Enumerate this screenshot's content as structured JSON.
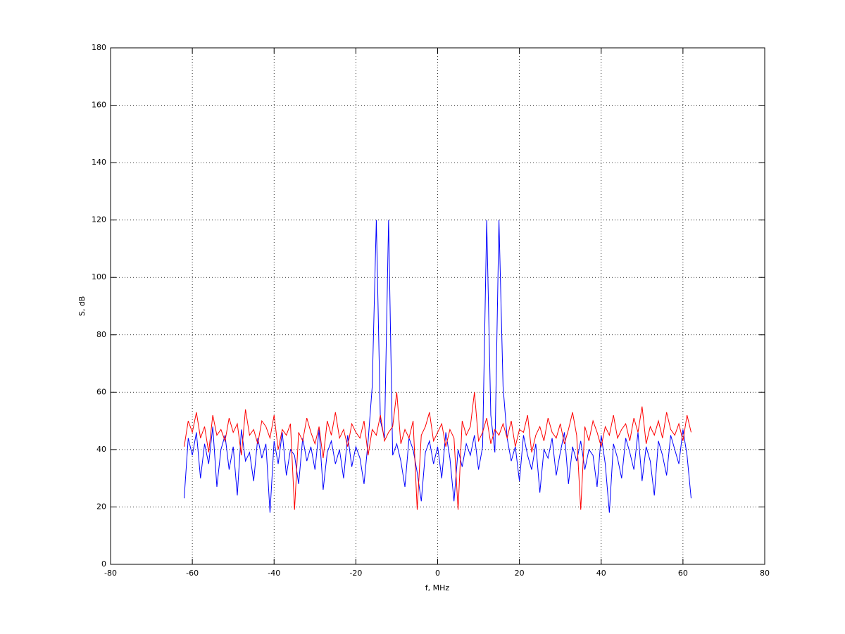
{
  "chart_data": {
    "type": "line",
    "xlabel": "f, MHz",
    "ylabel": "S, dB",
    "xlim": [
      -80,
      80
    ],
    "xticks": [
      -80,
      -60,
      -40,
      -20,
      0,
      20,
      40,
      60,
      80
    ],
    "ylim": [
      0,
      180
    ],
    "yticks": [
      0,
      20,
      40,
      60,
      80,
      100,
      120,
      140,
      160,
      180
    ],
    "grid": true,
    "x": [
      -62,
      -61,
      -60,
      -59,
      -58,
      -57,
      -56,
      -55,
      -54,
      -53,
      -52,
      -51,
      -50,
      -49,
      -48,
      -47,
      -46,
      -45,
      -44,
      -43,
      -42,
      -41,
      -40,
      -39,
      -38,
      -37,
      -36,
      -35,
      -34,
      -33,
      -32,
      -31,
      -30,
      -29,
      -28,
      -27,
      -26,
      -25,
      -24,
      -23,
      -22,
      -21,
      -20,
      -19,
      -18,
      -17,
      -16,
      -15,
      -14,
      -13,
      -12,
      -11,
      -10,
      -9,
      -8,
      -7,
      -6,
      -5,
      -4,
      -3,
      -2,
      -1,
      0,
      1,
      2,
      3,
      4,
      5,
      6,
      7,
      8,
      9,
      10,
      11,
      12,
      13,
      14,
      15,
      16,
      17,
      18,
      19,
      20,
      21,
      22,
      23,
      24,
      25,
      26,
      27,
      28,
      29,
      30,
      31,
      32,
      33,
      34,
      35,
      36,
      37,
      38,
      39,
      40,
      41,
      42,
      43,
      44,
      45,
      46,
      47,
      48,
      49,
      50,
      51,
      52,
      53,
      54,
      55,
      56,
      57,
      58,
      59,
      60,
      61,
      62
    ],
    "series": [
      {
        "color": "#0000ff",
        "values": [
          23,
          44,
          38,
          46,
          30,
          42,
          35,
          48,
          27,
          40,
          45,
          33,
          41,
          24,
          47,
          36,
          39,
          29,
          44,
          37,
          42,
          18,
          43,
          35,
          46,
          31,
          40,
          38,
          28,
          44,
          36,
          41,
          33,
          47,
          26,
          39,
          43,
          35,
          40,
          30,
          45,
          34,
          41,
          37,
          28,
          43,
          62,
          120,
          50,
          44,
          120,
          38,
          42,
          36,
          27,
          44,
          40,
          32,
          22,
          39,
          43,
          35,
          41,
          30,
          46,
          37,
          22,
          40,
          34,
          42,
          38,
          45,
          33,
          41,
          120,
          52,
          39,
          120,
          62,
          44,
          36,
          41,
          29,
          45,
          38,
          33,
          42,
          25,
          40,
          37,
          44,
          31,
          39,
          46,
          28,
          41,
          36,
          43,
          33,
          40,
          38,
          27,
          45,
          35,
          18,
          42,
          37,
          30,
          44,
          39,
          33,
          46,
          29,
          41,
          36,
          24,
          43,
          38,
          31,
          45,
          40,
          35,
          47,
          38,
          23
        ]
      },
      {
        "color": "#ff0000",
        "values": [
          41,
          50,
          46,
          53,
          44,
          48,
          39,
          52,
          45,
          47,
          43,
          51,
          46,
          49,
          38,
          54,
          45,
          47,
          42,
          50,
          48,
          44,
          52,
          40,
          47,
          45,
          49,
          19,
          46,
          43,
          51,
          46,
          42,
          48,
          37,
          50,
          45,
          53,
          44,
          47,
          41,
          49,
          46,
          44,
          50,
          38,
          47,
          45,
          52,
          43,
          46,
          48,
          60,
          42,
          47,
          44,
          50,
          19,
          45,
          48,
          53,
          43,
          46,
          49,
          41,
          47,
          44,
          19,
          50,
          45,
          48,
          60,
          43,
          46,
          51,
          42,
          47,
          45,
          49,
          44,
          50,
          41,
          47,
          46,
          52,
          39,
          45,
          48,
          43,
          51,
          46,
          44,
          49,
          42,
          47,
          53,
          45,
          19,
          48,
          43,
          50,
          46,
          41,
          48,
          45,
          52,
          44,
          47,
          49,
          43,
          51,
          46,
          55,
          42,
          48,
          45,
          50,
          44,
          53,
          47,
          45,
          49,
          43,
          52,
          46
        ]
      }
    ]
  }
}
